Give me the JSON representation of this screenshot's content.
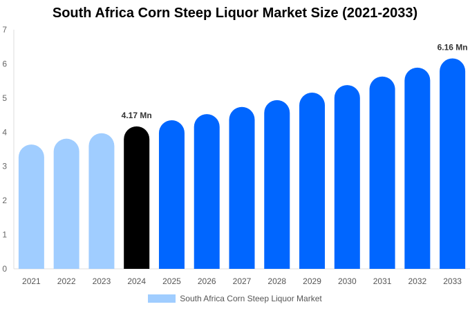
{
  "chart_data": {
    "type": "bar",
    "title": "South Africa Corn Steep Liquor Market Size (2021-2033)",
    "xlabel": "",
    "ylabel": "",
    "ylim": [
      0,
      7
    ],
    "yticks": [
      0,
      1,
      2,
      3,
      4,
      5,
      6,
      7
    ],
    "categories": [
      "2021",
      "2022",
      "2023",
      "2024",
      "2025",
      "2026",
      "2027",
      "2028",
      "2029",
      "2030",
      "2031",
      "2032",
      "2033"
    ],
    "series": [
      {
        "name": "South Africa Corn Steep Liquor Market",
        "values": [
          3.64,
          3.81,
          3.97,
          4.17,
          4.35,
          4.53,
          4.74,
          4.94,
          5.16,
          5.38,
          5.63,
          5.89,
          6.16
        ]
      }
    ],
    "bar_colors": [
      "#a0cdff",
      "#a0cdff",
      "#a0cdff",
      "#000000",
      "#0066ff",
      "#0066ff",
      "#0066ff",
      "#0066ff",
      "#0066ff",
      "#0066ff",
      "#0066ff",
      "#0066ff",
      "#0066ff"
    ],
    "annotations": [
      {
        "category": "2024",
        "text": "4.17 Mn"
      },
      {
        "category": "2033",
        "text": "6.16 Mn"
      }
    ],
    "legend_position": "bottom",
    "grid": false
  }
}
